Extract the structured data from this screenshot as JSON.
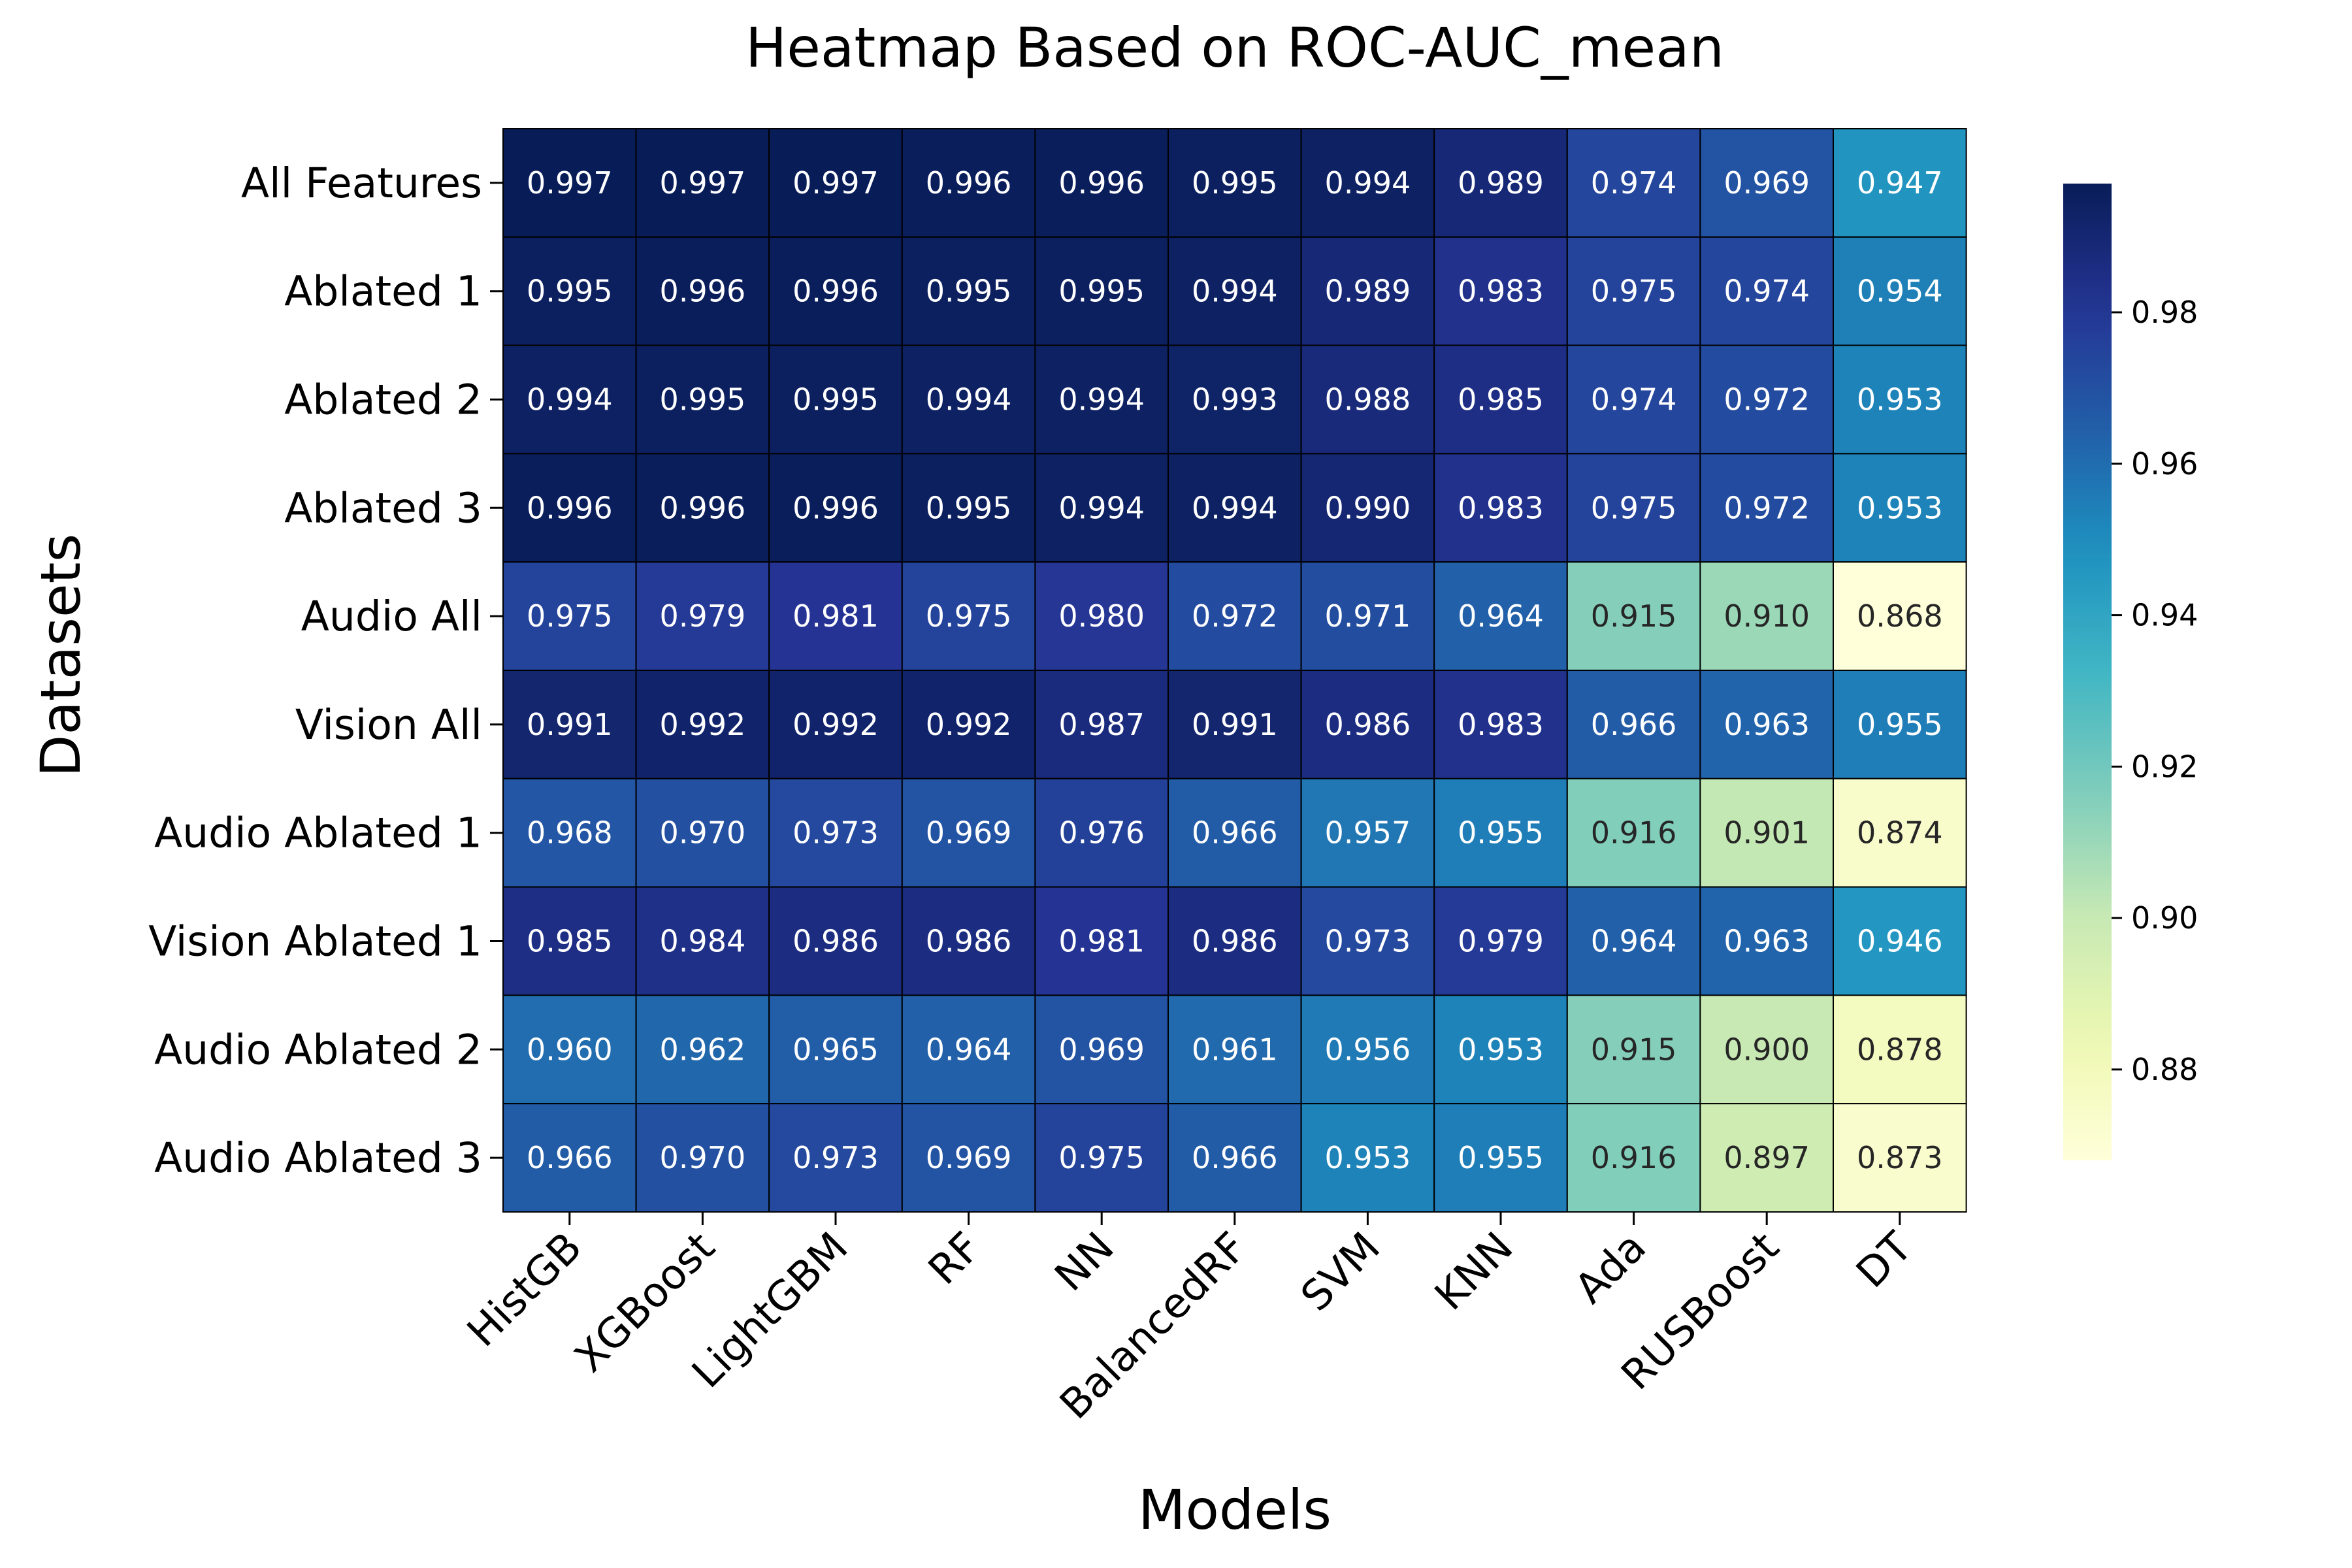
{
  "chart_data": {
    "type": "heatmap",
    "title": "Heatmap Based on ROC-AUC_mean",
    "xlabel": "Models",
    "ylabel": "Datasets",
    "columns": [
      "HistGB",
      "XGBoost",
      "LightGBM",
      "RF",
      "NN",
      "BalancedRF",
      "SVM",
      "KNN",
      "Ada",
      "RUSBoost",
      "DT"
    ],
    "rows": [
      "All Features",
      "Ablated 1",
      "Ablated 2",
      "Ablated 3",
      "Audio All",
      "Vision All",
      "Audio Ablated 1",
      "Vision Ablated 1",
      "Audio Ablated 2",
      "Audio Ablated 3"
    ],
    "values": [
      [
        0.997,
        0.997,
        0.997,
        0.996,
        0.996,
        0.995,
        0.994,
        0.989,
        0.974,
        0.969,
        0.947
      ],
      [
        0.995,
        0.996,
        0.996,
        0.995,
        0.995,
        0.994,
        0.989,
        0.983,
        0.975,
        0.974,
        0.954
      ],
      [
        0.994,
        0.995,
        0.995,
        0.994,
        0.994,
        0.993,
        0.988,
        0.985,
        0.974,
        0.972,
        0.953
      ],
      [
        0.996,
        0.996,
        0.996,
        0.995,
        0.994,
        0.994,
        0.99,
        0.983,
        0.975,
        0.972,
        0.953
      ],
      [
        0.975,
        0.979,
        0.981,
        0.975,
        0.98,
        0.972,
        0.971,
        0.964,
        0.915,
        0.91,
        0.868
      ],
      [
        0.991,
        0.992,
        0.992,
        0.992,
        0.987,
        0.991,
        0.986,
        0.983,
        0.966,
        0.963,
        0.955
      ],
      [
        0.968,
        0.97,
        0.973,
        0.969,
        0.976,
        0.966,
        0.957,
        0.955,
        0.916,
        0.901,
        0.874
      ],
      [
        0.985,
        0.984,
        0.986,
        0.986,
        0.981,
        0.986,
        0.973,
        0.979,
        0.964,
        0.963,
        0.946
      ],
      [
        0.96,
        0.962,
        0.965,
        0.964,
        0.969,
        0.961,
        0.956,
        0.953,
        0.915,
        0.9,
        0.878
      ],
      [
        0.966,
        0.97,
        0.973,
        0.969,
        0.975,
        0.966,
        0.953,
        0.955,
        0.916,
        0.897,
        0.873
      ]
    ],
    "colorbar": {
      "colormap": "YlGnBu",
      "range": [
        0.868,
        0.997
      ],
      "ticks": [
        "0.88",
        "0.90",
        "0.92",
        "0.94",
        "0.96",
        "0.98"
      ]
    },
    "grid": false,
    "cell_border_color": "#000000"
  }
}
